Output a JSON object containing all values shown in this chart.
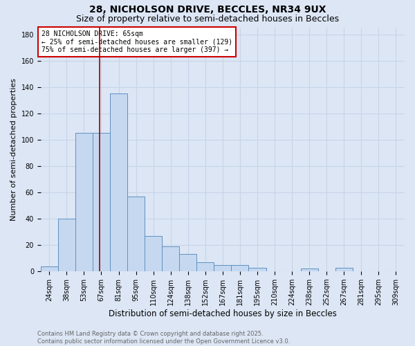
{
  "title1": "28, NICHOLSON DRIVE, BECCLES, NR34 9UX",
  "title2": "Size of property relative to semi-detached houses in Beccles",
  "xlabel": "Distribution of semi-detached houses by size in Beccles",
  "ylabel": "Number of semi-detached properties",
  "categories": [
    "24sqm",
    "38sqm",
    "53sqm",
    "67sqm",
    "81sqm",
    "95sqm",
    "110sqm",
    "124sqm",
    "138sqm",
    "152sqm",
    "167sqm",
    "181sqm",
    "195sqm",
    "210sqm",
    "224sqm",
    "238sqm",
    "252sqm",
    "267sqm",
    "281sqm",
    "295sqm",
    "309sqm"
  ],
  "bar_heights": [
    4,
    40,
    105,
    105,
    135,
    57,
    27,
    19,
    13,
    7,
    5,
    5,
    3,
    0,
    0,
    2,
    0,
    3,
    0,
    0,
    0
  ],
  "bar_color": "#c5d8f0",
  "bar_edge_color": "#6090c0",
  "grid_color": "#c8d4e8",
  "background_color": "#dce6f5",
  "vline_x_index": 2.9,
  "vline_color": "#990000",
  "annotation_text": "28 NICHOLSON DRIVE: 65sqm\n← 25% of semi-detached houses are smaller (129)\n75% of semi-detached houses are larger (397) →",
  "annotation_box_color": "#ffffff",
  "annotation_edge_color": "#cc0000",
  "ylim": [
    0,
    185
  ],
  "yticks": [
    0,
    20,
    40,
    60,
    80,
    100,
    120,
    140,
    160,
    180
  ],
  "footer_text": "Contains HM Land Registry data © Crown copyright and database right 2025.\nContains public sector information licensed under the Open Government Licence v3.0.",
  "title1_fontsize": 10,
  "title2_fontsize": 9,
  "xlabel_fontsize": 8.5,
  "ylabel_fontsize": 8,
  "tick_fontsize": 7,
  "annotation_fontsize": 7,
  "footer_fontsize": 6
}
